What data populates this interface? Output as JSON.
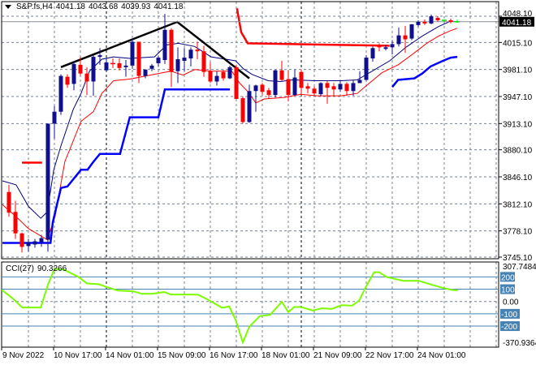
{
  "header": {
    "symbol": "S&P.fs,H4",
    "open": "4041.18",
    "high": "4043.68",
    "low": "4039.93",
    "close": "4041.18"
  },
  "indicator": {
    "name": "CCI(27)",
    "value": "90.3266"
  },
  "colors": {
    "bull": "#10108c",
    "bear": "#ff0000",
    "doji": "#00e000",
    "ma_fast": "#000080",
    "ma_slow": "#ff0000",
    "support": "#0000ff",
    "resistance": "#ff0000",
    "trendline": "#000000",
    "cci": "#7cfc00",
    "level": "#4682b4",
    "grid": "#7a8290"
  },
  "chart_data": [
    {
      "type": "candlestick",
      "title": "S&P.fs,H4",
      "ylim": [
        3745.1,
        4048.1
      ],
      "yticks": [
        "4048.10",
        "4015.10",
        "3981.10",
        "3947.10",
        "3913.10",
        "3880.10",
        "3846.10",
        "3812.10",
        "3778.10",
        "3745.10"
      ],
      "current_price": "4041.18",
      "xticks": [
        {
          "index": -1,
          "label": "9 Nov 2022"
        },
        {
          "index": 7,
          "label": "10 Nov 17:00"
        },
        {
          "index": 15,
          "label": "14 Nov 01:00"
        },
        {
          "index": 23,
          "label": "15 Nov 09:00"
        },
        {
          "index": 31,
          "label": "16 Nov 17:00"
        },
        {
          "index": 39,
          "label": "18 Nov 01:00"
        },
        {
          "index": 47,
          "label": "21 Nov 09:00"
        },
        {
          "index": 55,
          "label": "22 Nov 17:00"
        },
        {
          "index": 63,
          "label": "24 Nov 01:00"
        }
      ],
      "ohlc": [
        [
          3827,
          3836,
          3796,
          3801
        ],
        [
          3802,
          3816,
          3768,
          3775
        ],
        [
          3775,
          3776,
          3751,
          3758
        ],
        [
          3759,
          3768,
          3752,
          3764
        ],
        [
          3761,
          3768,
          3757,
          3765
        ],
        [
          3764,
          3773,
          3758,
          3769
        ],
        [
          3767,
          3913,
          3752,
          3913
        ],
        [
          3913,
          3935,
          3894,
          3928
        ],
        [
          3928,
          3975,
          3924,
          3973
        ],
        [
          3972,
          3975,
          3958,
          3962
        ],
        [
          3963,
          3991,
          3955,
          3988
        ],
        [
          3987,
          3997,
          3973,
          3976
        ],
        [
          3976,
          3984,
          3949,
          3966
        ],
        [
          3966,
          3999,
          3948,
          3997
        ],
        [
          3997,
          4008,
          3987,
          3999
        ],
        [
          3980,
          3995,
          3979,
          3990
        ],
        [
          3989,
          3995,
          3983,
          3988
        ],
        [
          3989,
          3995,
          3980,
          3983
        ],
        [
          3984,
          3993,
          3972,
          3986
        ],
        [
          3986,
          4020,
          3982,
          4016
        ],
        [
          4016,
          4016,
          3964,
          3973
        ],
        [
          3973,
          3981,
          3970,
          3981
        ],
        [
          3982,
          3988,
          3979,
          3986
        ],
        [
          3989,
          3998,
          3985,
          3996
        ],
        [
          3993,
          4051,
          3988,
          4031
        ],
        [
          4031,
          4033,
          3959,
          3978
        ],
        [
          3979,
          4009,
          3964,
          3994
        ],
        [
          3992,
          4008,
          3979,
          3996
        ],
        [
          3995,
          4009,
          3985,
          4006
        ],
        [
          4006,
          4016,
          3994,
          4004
        ],
        [
          4004,
          4011,
          3972,
          3978
        ],
        [
          3979,
          3990,
          3964,
          3966
        ],
        [
          3966,
          3979,
          3961,
          3973
        ],
        [
          3978,
          3981,
          3967,
          3970
        ],
        [
          3970,
          3986,
          3969,
          3984
        ],
        [
          3984,
          3987,
          3944,
          3944
        ],
        [
          3945,
          3947,
          3913,
          3915
        ],
        [
          3915,
          3962,
          3914,
          3954
        ],
        [
          3954,
          3962,
          3928,
          3961
        ],
        [
          3962,
          3964,
          3949,
          3953
        ],
        [
          3955,
          3958,
          3944,
          3949
        ],
        [
          3949,
          3981,
          3946,
          3980
        ],
        [
          3980,
          3992,
          3967,
          3968
        ],
        [
          3969,
          3980,
          3941,
          3949
        ],
        [
          3949,
          3981,
          3948,
          3971
        ],
        [
          3978,
          3981,
          3949,
          3958
        ],
        [
          3960,
          3964,
          3951,
          3957
        ],
        [
          3957,
          3960,
          3948,
          3951
        ],
        [
          3950,
          3965,
          3948,
          3964
        ],
        [
          3964,
          3967,
          3938,
          3958
        ],
        [
          3960,
          3964,
          3948,
          3956
        ],
        [
          3956,
          3967,
          3953,
          3963
        ],
        [
          3963,
          3965,
          3948,
          3954
        ],
        [
          3954,
          3968,
          3948,
          3964
        ],
        [
          3964,
          3979,
          3964,
          3968
        ],
        [
          3968,
          3999,
          3967,
          3996
        ],
        [
          3995,
          4010,
          3991,
          4008
        ],
        [
          4011,
          4014,
          4004,
          4009
        ],
        [
          4007,
          4012,
          4005,
          4009
        ],
        [
          4009,
          4018,
          4000,
          4013
        ],
        [
          4013,
          4034,
          4010,
          4024
        ],
        [
          4024,
          4036,
          4002,
          4019
        ],
        [
          4020,
          4038,
          4018,
          4038
        ],
        [
          4037,
          4043,
          4035,
          4041
        ],
        [
          4041,
          4044,
          4037,
          4039
        ],
        [
          4039,
          4050,
          4038,
          4048
        ],
        [
          4046,
          4048,
          4041,
          4043
        ],
        [
          4043,
          4044,
          4041,
          4043
        ],
        [
          4043,
          4045,
          4039,
          4041
        ],
        [
          4041.18,
          4043.68,
          4039.93,
          4041.18
        ]
      ],
      "lines": [
        {
          "name": "ma-fast",
          "points": [
            [
              -1,
              3841
            ],
            [
              1.1,
              3836
            ],
            [
              3,
              3809
            ],
            [
              4.9,
              3794
            ],
            [
              5.9,
              3802
            ],
            [
              6.9,
              3855
            ],
            [
              8,
              3885
            ],
            [
              9.9,
              3931
            ],
            [
              11.1,
              3951
            ],
            [
              12.4,
              3979
            ],
            [
              14.3,
              3994
            ],
            [
              16.1,
              3997
            ],
            [
              18.6,
              3995
            ],
            [
              22.4,
              3997
            ],
            [
              24.3,
              4012
            ],
            [
              26.1,
              4014
            ],
            [
              28.6,
              4010
            ],
            [
              31.1,
              3997
            ],
            [
              34.9,
              3992
            ],
            [
              36.1,
              3982
            ],
            [
              37.4,
              3975
            ],
            [
              39.9,
              3967
            ],
            [
              41.8,
              3966
            ],
            [
              43.6,
              3968
            ],
            [
              47.4,
              3967
            ],
            [
              51.1,
              3967
            ],
            [
              53.6,
              3968
            ],
            [
              56.1,
              3980
            ],
            [
              58.6,
              3992
            ],
            [
              61.1,
              4009
            ],
            [
              63.6,
              4023
            ],
            [
              66.1,
              4035
            ],
            [
              68,
              4042
            ],
            [
              69,
              4041
            ]
          ]
        },
        {
          "name": "ma-slow",
          "points": [
            [
              -1,
              3811
            ],
            [
              1.1,
              3796
            ],
            [
              3,
              3781
            ],
            [
              5.9,
              3767
            ],
            [
              7.1,
              3796
            ],
            [
              8.6,
              3865
            ],
            [
              11.1,
              3916
            ],
            [
              13,
              3928
            ],
            [
              14.3,
              3951
            ],
            [
              16.1,
              3967
            ],
            [
              18.6,
              3969
            ],
            [
              23.6,
              3977
            ],
            [
              24.9,
              3979
            ],
            [
              26.8,
              3974
            ],
            [
              28.6,
              3981
            ],
            [
              31.1,
              3979
            ],
            [
              34.3,
              3979
            ],
            [
              35.5,
              3964
            ],
            [
              36.8,
              3953
            ],
            [
              38,
              3939
            ],
            [
              39.3,
              3944
            ],
            [
              42.4,
              3946
            ],
            [
              44.9,
              3950
            ],
            [
              47.4,
              3948
            ],
            [
              51.1,
              3948
            ],
            [
              53.6,
              3951
            ],
            [
              55.5,
              3964
            ],
            [
              57.4,
              3977
            ],
            [
              59.9,
              3987
            ],
            [
              62.4,
              4002
            ],
            [
              64.3,
              4014
            ],
            [
              66.1,
              4023
            ],
            [
              68,
              4030
            ],
            [
              69,
              4033
            ]
          ]
        },
        {
          "name": "support-1",
          "points": [
            [
              -1,
              3763
            ],
            [
              6.4,
              3763
            ],
            [
              6.75,
              3789
            ],
            [
              8,
              3832
            ],
            [
              9,
              3834
            ],
            [
              11.1,
              3855
            ],
            [
              12.1,
              3855
            ],
            [
              13,
              3865
            ],
            [
              14,
              3875
            ],
            [
              17.1,
              3875
            ],
            [
              18.6,
              3921
            ],
            [
              23,
              3921
            ],
            [
              24,
              3956
            ],
            [
              34,
              3956
            ]
          ]
        },
        {
          "name": "support-2",
          "points": [
            [
              59,
              3959
            ],
            [
              59.9,
              3968
            ],
            [
              62.4,
              3970
            ],
            [
              63.6,
              3976
            ],
            [
              64.9,
              3985
            ],
            [
              66.8,
              3992
            ],
            [
              68,
              3996
            ],
            [
              69,
              3997
            ]
          ]
        },
        {
          "name": "resistance-1",
          "points": [
            [
              2,
              3864
            ],
            [
              5.1,
              3864
            ]
          ]
        },
        {
          "name": "resistance-2",
          "points": [
            [
              35.1,
              4058
            ],
            [
              35.75,
              4028
            ],
            [
              36.75,
              4014
            ],
            [
              58.6,
              4011
            ]
          ]
        },
        {
          "name": "trendline",
          "points": [
            [
              8,
              3984
            ],
            [
              25.9,
              4041
            ],
            [
              37,
              3970
            ]
          ]
        }
      ]
    },
    {
      "type": "line",
      "title": "CCI(27)",
      "ylim": [
        -370.9364,
        307.7484
      ],
      "yticks": [
        "307.7484",
        "0.00",
        "-370.9364"
      ],
      "levels": [
        "200",
        "100",
        "-100",
        "-200"
      ],
      "series": [
        {
          "name": "CCI(27)",
          "points": [
            [
              -1.1,
              94
            ],
            [
              0.7,
              19
            ],
            [
              2.05,
              -49
            ],
            [
              4.9,
              -49
            ],
            [
              6,
              136
            ],
            [
              7,
              264
            ],
            [
              8.4,
              260
            ],
            [
              10.7,
              200
            ],
            [
              12,
              147
            ],
            [
              13.9,
              140
            ],
            [
              15.2,
              115
            ],
            [
              16.8,
              89
            ],
            [
              19.1,
              83
            ],
            [
              20.5,
              62
            ],
            [
              22,
              62
            ],
            [
              23.9,
              77
            ],
            [
              24.9,
              57
            ],
            [
              28.1,
              57
            ],
            [
              29.1,
              55
            ],
            [
              30.7,
              13
            ],
            [
              32.8,
              -51
            ],
            [
              33.9,
              -41
            ],
            [
              34.9,
              -151
            ],
            [
              36,
              -332
            ],
            [
              37,
              -205
            ],
            [
              38.6,
              -119
            ],
            [
              40.2,
              -109
            ],
            [
              42,
              -2
            ],
            [
              43,
              -87
            ],
            [
              43.9,
              -45
            ],
            [
              44.9,
              -45
            ],
            [
              46.8,
              -73
            ],
            [
              48.1,
              -55
            ],
            [
              49.7,
              -60
            ],
            [
              51.2,
              -30
            ],
            [
              52.8,
              -34
            ],
            [
              53.9,
              8
            ],
            [
              54.9,
              115
            ],
            [
              56.2,
              238
            ],
            [
              57,
              238
            ],
            [
              58.1,
              200
            ],
            [
              60.7,
              168
            ],
            [
              63.1,
              168
            ],
            [
              64.4,
              147
            ],
            [
              66.5,
              115
            ],
            [
              68.1,
              94
            ],
            [
              69.1,
              90.3266
            ]
          ]
        }
      ]
    }
  ]
}
